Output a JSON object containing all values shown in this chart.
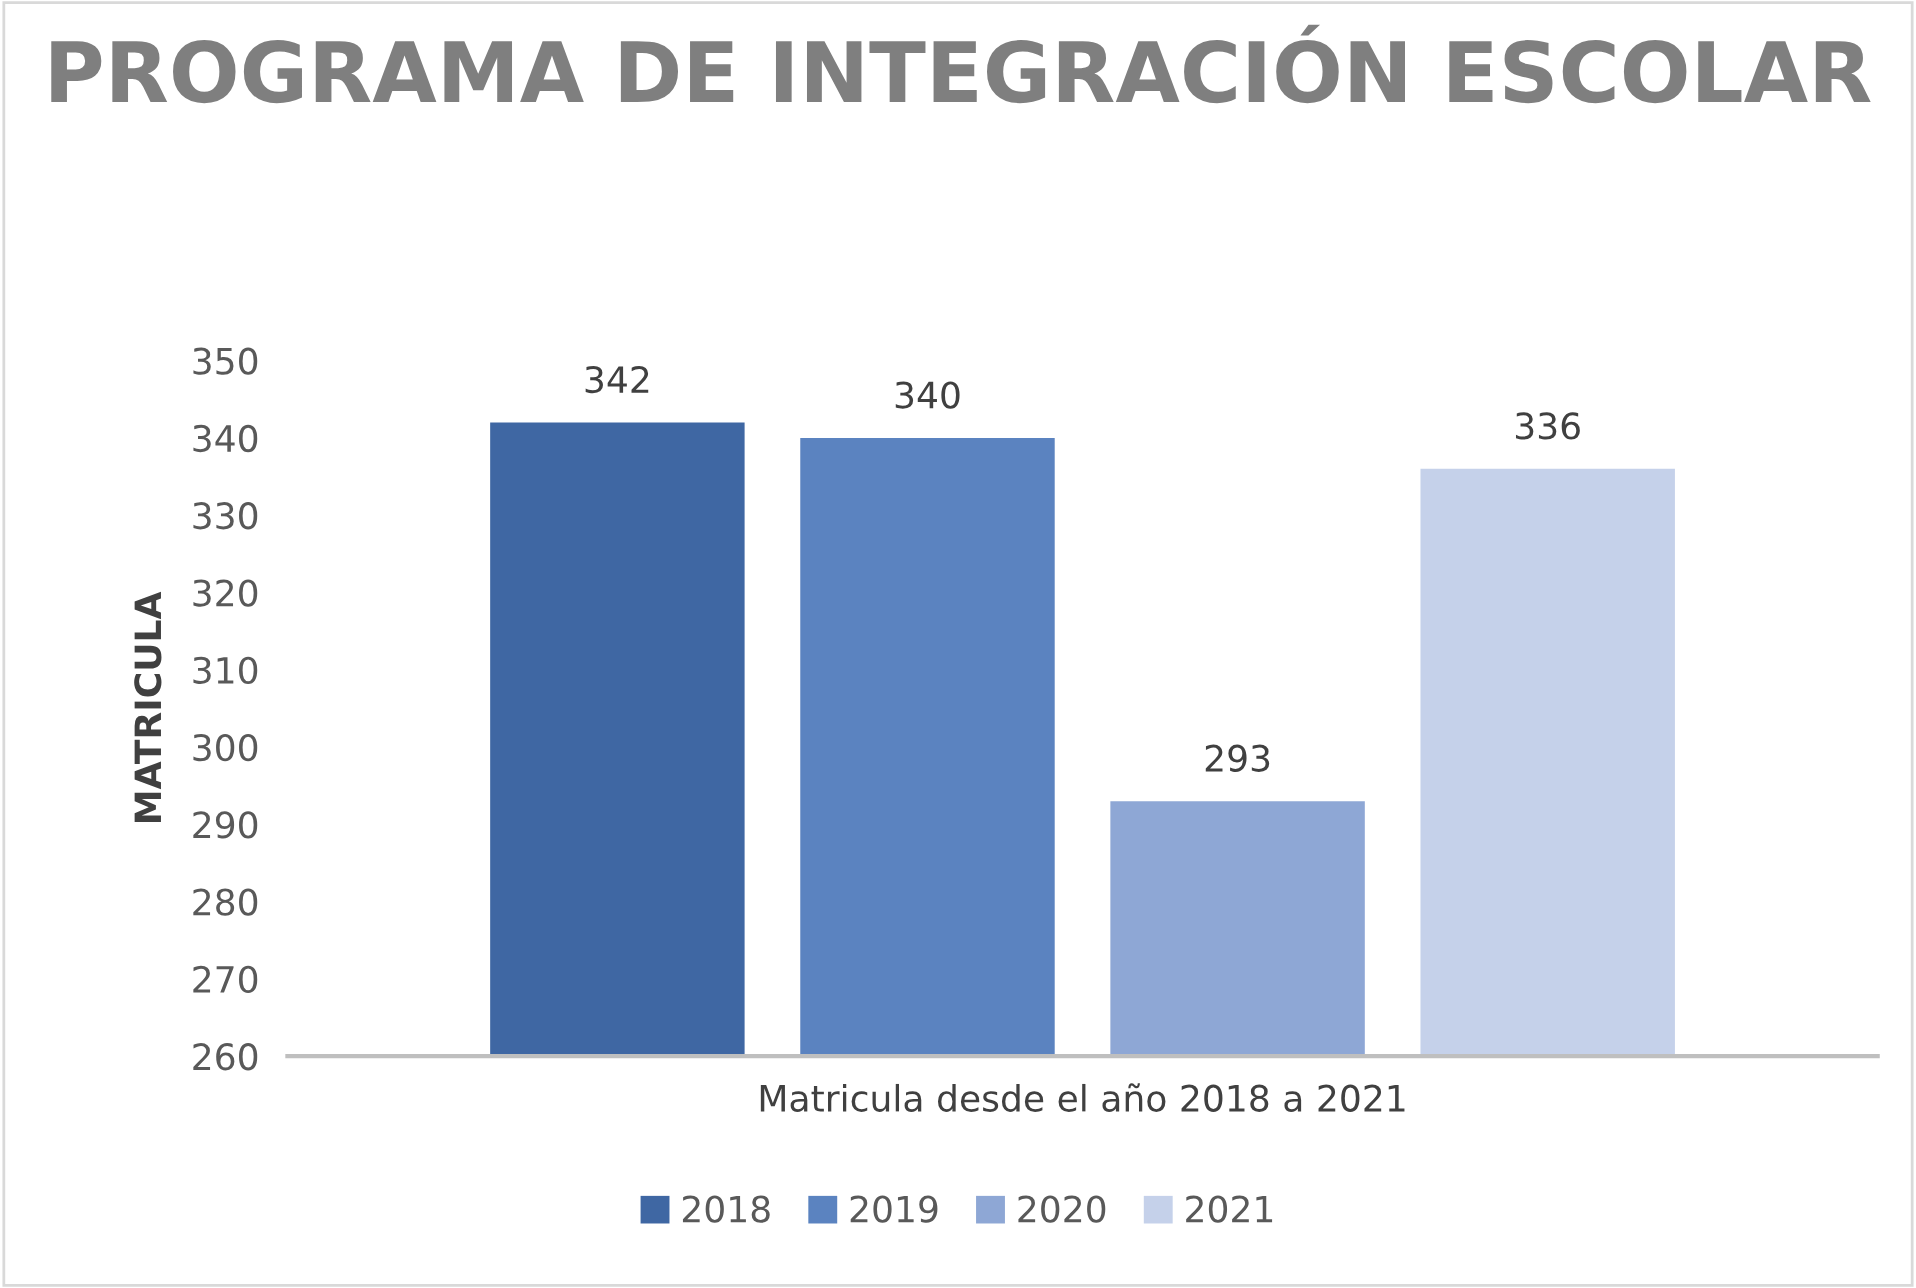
{
  "chart_data": {
    "type": "bar",
    "title": "PROGRAMA DE INTEGRACIÓN ESCOLAR",
    "ylabel": "MATRICULA",
    "categories": [
      "Matricula desde el año 2018 a 2021"
    ],
    "series": [
      {
        "name": "2018",
        "color": "#3f67a3",
        "values": [
          342
        ]
      },
      {
        "name": "2019",
        "color": "#5b83c0",
        "values": [
          340
        ]
      },
      {
        "name": "2020",
        "color": "#8ea7d5",
        "values": [
          293
        ]
      },
      {
        "name": "2021",
        "color": "#c5d1ea",
        "values": [
          336
        ]
      }
    ],
    "ylim": [
      260,
      350
    ],
    "yticks": [
      260,
      270,
      280,
      290,
      300,
      310,
      320,
      330,
      340,
      350
    ],
    "data_labels": true,
    "grid": false,
    "legend": "bottom"
  }
}
